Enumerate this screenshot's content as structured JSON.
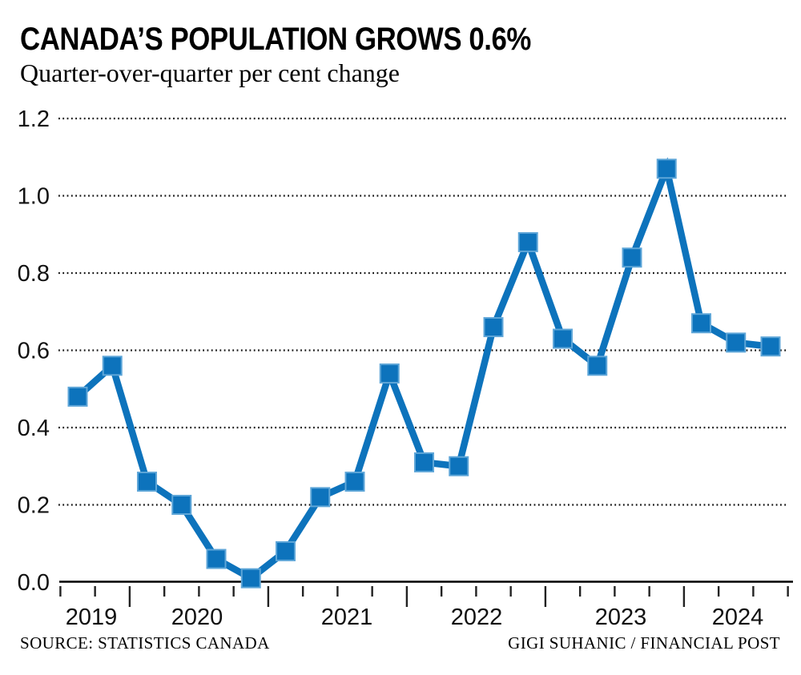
{
  "header": {
    "title": "CANADA’S POPULATION GROWS 0.6%",
    "subtitle": "Quarter-over-quarter per cent change"
  },
  "footer": {
    "source": "SOURCE: STATISTICS CANADA",
    "credit": "GIGI SUHANIC / FINANCIAL POST"
  },
  "chart_data": {
    "type": "line",
    "title": "CANADA’S POPULATION GROWS 0.6%",
    "subtitle": "Quarter-over-quarter per cent change",
    "xlabel": "",
    "ylabel": "",
    "x": [
      "Q3 2019",
      "Q4 2019",
      "Q1 2020",
      "Q2 2020",
      "Q3 2020",
      "Q4 2020",
      "Q1 2021",
      "Q2 2021",
      "Q3 2021",
      "Q4 2021",
      "Q1 2022",
      "Q2 2022",
      "Q3 2022",
      "Q4 2022",
      "Q1 2023",
      "Q2 2023",
      "Q3 2023",
      "Q4 2023",
      "Q1 2024",
      "Q2 2024",
      "Q3 2024"
    ],
    "values": [
      0.48,
      0.56,
      0.26,
      0.2,
      0.06,
      0.01,
      0.08,
      0.22,
      0.26,
      0.54,
      0.31,
      0.3,
      0.66,
      0.88,
      0.63,
      0.56,
      0.84,
      1.07,
      0.67,
      0.62,
      0.61
    ],
    "ylim": [
      0.0,
      1.2
    ],
    "yticks": [
      0.0,
      0.2,
      0.4,
      0.6,
      0.8,
      1.0,
      1.2
    ],
    "ytick_labels": [
      "0.0",
      "0.2",
      "0.4",
      "0.6",
      "0.8",
      "1.0",
      "1.2"
    ],
    "xtick_year_labels": [
      "2019",
      "2020",
      "2021",
      "2022",
      "2023",
      "2024"
    ],
    "grid": "horizontal-dotted",
    "legend": "none",
    "marker": "square",
    "series_color": "#0d73bc",
    "marker_edge_color": "#5ea6d8",
    "grid_color": "#111111",
    "axis_color": "#000000"
  }
}
